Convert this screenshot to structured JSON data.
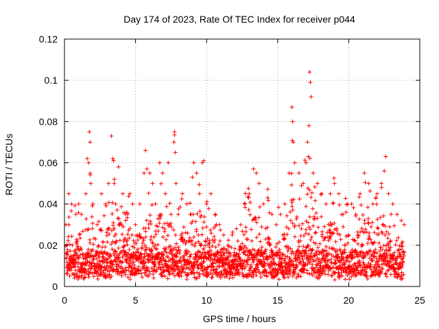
{
  "chart_data": {
    "type": "scatter",
    "title": "Day 174 of 2023, Rate Of TEC Index for receiver p044",
    "xlabel": "GPS time / hours",
    "ylabel": "ROTI / TECUs",
    "xlim": [
      0,
      25
    ],
    "ylim": [
      0,
      0.12
    ],
    "xticks": [
      0,
      5,
      10,
      15,
      20,
      25
    ],
    "xtick_labels": [
      "0",
      "5",
      "10",
      "15",
      "20",
      "25"
    ],
    "yticks": [
      0,
      0.02,
      0.04,
      0.06,
      0.08,
      0.1,
      0.12
    ],
    "ytick_labels": [
      "0",
      "0.02",
      "0.04",
      "0.06",
      "0.08",
      "0.1",
      "0.12"
    ],
    "grid": true,
    "marker": "plus",
    "color": "#ff0000",
    "series": [
      {
        "name": "ROTI",
        "x": [
          0.1,
          0.3,
          0.5,
          0.8,
          1.0,
          1.2,
          1.5,
          1.6,
          1.7,
          1.75,
          1.8,
          1.85,
          2.0,
          2.3,
          2.6,
          2.9,
          3.1,
          3.3,
          3.4,
          3.45,
          3.5,
          3.6,
          3.8,
          4.1,
          4.3,
          4.6,
          4.8,
          5.0,
          5.3,
          5.6,
          5.7,
          5.8,
          6.0,
          6.2,
          6.4,
          6.7,
          6.9,
          7.1,
          7.3,
          7.5,
          7.7,
          7.75,
          7.8,
          7.85,
          8.0,
          8.3,
          8.6,
          8.9,
          9.1,
          9.3,
          9.5,
          9.7,
          9.8,
          10.0,
          10.3,
          10.6,
          10.9,
          11.2,
          11.5,
          11.8,
          12.1,
          12.4,
          12.7,
          13.0,
          13.3,
          13.5,
          13.7,
          14.0,
          14.3,
          14.6,
          14.9,
          15.2,
          15.5,
          15.8,
          16.0,
          16.05,
          16.1,
          16.2,
          16.5,
          16.8,
          17.0,
          17.1,
          17.2,
          17.25,
          17.3,
          17.35,
          17.5,
          17.8,
          18.1,
          18.4,
          18.7,
          19.0,
          19.3,
          19.6,
          19.9,
          20.2,
          20.5,
          20.8,
          21.1,
          21.4,
          21.7,
          22.0,
          22.3,
          22.5,
          22.6,
          22.8,
          23.1,
          23.4,
          23.7,
          23.9
        ],
        "y": [
          0.03,
          0.045,
          0.04,
          0.035,
          0.04,
          0.035,
          0.045,
          0.062,
          0.06,
          0.075,
          0.07,
          0.05,
          0.04,
          0.03,
          0.045,
          0.04,
          0.05,
          0.073,
          0.062,
          0.061,
          0.05,
          0.04,
          0.058,
          0.045,
          0.035,
          0.045,
          0.04,
          0.03,
          0.04,
          0.055,
          0.066,
          0.057,
          0.055,
          0.05,
          0.04,
          0.06,
          0.055,
          0.045,
          0.06,
          0.035,
          0.07,
          0.075,
          0.065,
          0.05,
          0.035,
          0.045,
          0.04,
          0.035,
          0.06,
          0.055,
          0.045,
          0.06,
          0.061,
          0.04,
          0.045,
          0.035,
          0.03,
          0.025,
          0.02,
          0.025,
          0.028,
          0.03,
          0.04,
          0.045,
          0.057,
          0.055,
          0.05,
          0.04,
          0.043,
          0.035,
          0.03,
          0.035,
          0.04,
          0.055,
          0.087,
          0.08,
          0.07,
          0.06,
          0.055,
          0.05,
          0.06,
          0.07,
          0.078,
          0.104,
          0.099,
          0.092,
          0.055,
          0.05,
          0.045,
          0.04,
          0.045,
          0.05,
          0.045,
          0.035,
          0.04,
          0.04,
          0.035,
          0.045,
          0.055,
          0.05,
          0.04,
          0.045,
          0.05,
          0.056,
          0.063,
          0.045,
          0.04,
          0.035,
          0.032,
          0.03
        ]
      }
    ]
  }
}
